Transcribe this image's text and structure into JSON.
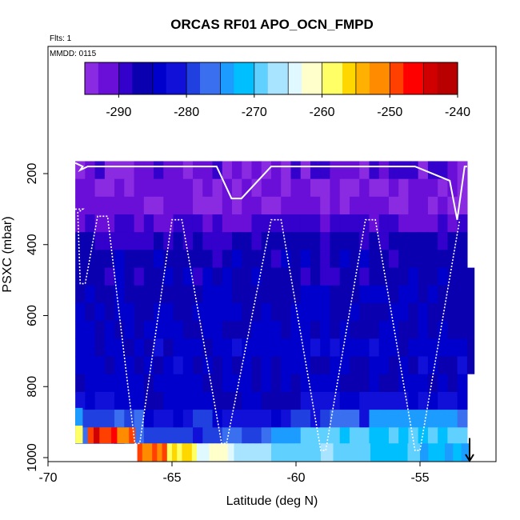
{
  "chart_data": {
    "type": "heatmap",
    "title": "ORCAS RF01 APO_OCN_FMPD",
    "note_flights": "Flts: 1",
    "note_date": "MMDD: 0115",
    "xlabel": "Latitude (deg N)",
    "ylabel": "PSXC (mbar)",
    "xlim": [
      -70,
      -52
    ],
    "ylim": [
      1000,
      0
    ],
    "x_ticks": [
      -70,
      -65,
      -60,
      -55
    ],
    "x_tick_labels": [
      "-70",
      "-65",
      "-60",
      "-55"
    ],
    "y_ticks": [
      200,
      400,
      600,
      800,
      1000
    ],
    "y_tick_labels": [
      "200",
      "400",
      "600",
      "800",
      "1000"
    ],
    "colorbar": {
      "range": [
        -295,
        -240
      ],
      "ticks": [
        -290,
        -280,
        -270,
        -260,
        -250,
        -240
      ],
      "tick_labels": [
        "-290",
        "-280",
        "-270",
        "-260",
        "-250",
        "-240"
      ],
      "colors": [
        "#8a2be2",
        "#6a0fd8",
        "#3300cc",
        "#0a00b0",
        "#0000cd",
        "#1010d8",
        "#2040e0",
        "#3a70f0",
        "#1c9cff",
        "#00bfff",
        "#60d0ff",
        "#a8e4ff",
        "#e0f8ff",
        "#ffffcc",
        "#ffff66",
        "#ffd700",
        "#ffb000",
        "#ff8c00",
        "#ff4000",
        "#ff0000",
        "#d00000",
        "#b80000"
      ]
    },
    "grid": false,
    "legend": "none",
    "lon_range": [
      -68.9,
      -53.1
    ],
    "pressure_levels": [
      {
        "p_top": 165,
        "p_bottom": 215,
        "base": -291.5
      },
      {
        "p_top": 215,
        "p_bottom": 265,
        "base": -292.0
      },
      {
        "p_top": 265,
        "p_bottom": 315,
        "base": -292.0
      },
      {
        "p_top": 315,
        "p_bottom": 365,
        "base": -290.0
      },
      {
        "p_top": 365,
        "p_bottom": 415,
        "base": -287.0
      },
      {
        "p_top": 415,
        "p_bottom": 465,
        "base": -286.0
      },
      {
        "p_top": 465,
        "p_bottom": 515,
        "base": -286.0
      },
      {
        "p_top": 515,
        "p_bottom": 565,
        "base": -285.5
      },
      {
        "p_top": 565,
        "p_bottom": 615,
        "base": -285.0
      },
      {
        "p_top": 615,
        "p_bottom": 665,
        "base": -284.5
      },
      {
        "p_top": 665,
        "p_bottom": 715,
        "base": -284.0
      },
      {
        "p_top": 715,
        "p_bottom": 765,
        "base": -284.0
      },
      {
        "p_top": 765,
        "p_bottom": 815,
        "base": -284.5
      },
      {
        "p_top": 815,
        "p_bottom": 865,
        "base": -282.5
      },
      {
        "p_top": 865,
        "p_bottom": 915,
        "base": -278.5
      },
      {
        "p_top": 915,
        "p_bottom": 960,
        "base": -276.0
      }
    ],
    "bottom_band": {
      "p_top": 960,
      "p_bottom": 1010,
      "segments": [
        {
          "lat_start": -66.4,
          "lat_end": -65.2,
          "value": -250
        },
        {
          "lat_start": -65.2,
          "lat_end": -64.0,
          "value": -257
        },
        {
          "lat_start": -64.0,
          "lat_end": -62.5,
          "value": -262
        },
        {
          "lat_start": -62.5,
          "lat_end": -61.0,
          "value": -266
        },
        {
          "lat_start": -61.0,
          "lat_end": -58.0,
          "value": -268
        },
        {
          "lat_start": -58.0,
          "lat_end": -55.0,
          "value": -270
        },
        {
          "lat_start": -55.0,
          "lat_end": -53.0,
          "value": -272
        }
      ]
    },
    "west_edge": [
      {
        "p_top": 860,
        "p_bottom": 910,
        "value": -275
      },
      {
        "p_top": 910,
        "p_bottom": 960,
        "value": -258
      }
    ],
    "red_patch": {
      "lat_start": -68.4,
      "lat_end": -66.5,
      "p_top": 915,
      "p_bottom": 960,
      "value": -248
    },
    "east_column": {
      "lat_start": -53.1,
      "lat_end": -52.8,
      "p_top": 465,
      "p_bottom": 765,
      "value": -287
    },
    "flight_track_upper": [
      [
        -68.9,
        170
      ],
      [
        -68.6,
        180
      ],
      [
        -68.7,
        190
      ],
      [
        -68.4,
        180
      ],
      [
        -63.2,
        180
      ],
      [
        -62.6,
        270
      ],
      [
        -62.2,
        270
      ],
      [
        -61.0,
        180
      ],
      [
        -55.2,
        180
      ],
      [
        -53.8,
        220
      ],
      [
        -53.5,
        330
      ],
      [
        -53.2,
        180
      ],
      [
        -53.1,
        180
      ]
    ],
    "flight_track_lower": [
      [
        -68.9,
        300
      ],
      [
        -68.6,
        300
      ],
      [
        -68.8,
        310
      ],
      [
        -68.7,
        510
      ],
      [
        -68.5,
        510
      ],
      [
        -68.0,
        320
      ],
      [
        -67.6,
        320
      ],
      [
        -66.5,
        960
      ],
      [
        -66.3,
        960
      ],
      [
        -65.0,
        330
      ],
      [
        -64.6,
        330
      ],
      [
        -63.0,
        960
      ],
      [
        -62.8,
        960
      ],
      [
        -61.0,
        330
      ],
      [
        -60.6,
        330
      ],
      [
        -59.0,
        980
      ],
      [
        -58.8,
        980
      ],
      [
        -57.2,
        330
      ],
      [
        -56.8,
        330
      ],
      [
        -55.2,
        980
      ],
      [
        -55.0,
        980
      ],
      [
        -53.4,
        330
      ]
    ],
    "arrow": {
      "lat": -53.0,
      "p_from": 945,
      "p_to": 1010
    }
  }
}
